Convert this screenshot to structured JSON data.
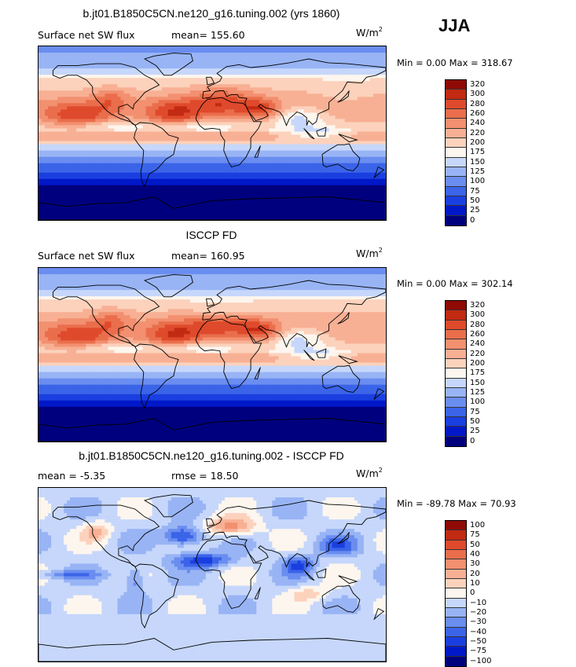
{
  "season": "JJA",
  "colors_abs": [
    "#00007f",
    "#0018c8",
    "#1a3fe0",
    "#3b64e8",
    "#6a8df0",
    "#98b4f5",
    "#c6d7fb",
    "#fdf6ee",
    "#fcd2bc",
    "#f8b094",
    "#f29070",
    "#ea6e4c",
    "#df4a2c",
    "#c22a12",
    "#8f0a04"
  ],
  "colors_diff": [
    "#00007f",
    "#0018c8",
    "#1a3fe0",
    "#3b64e8",
    "#6a8df0",
    "#98b4f5",
    "#c6d7fb",
    "#fdf6ee",
    "#fcd2bc",
    "#f8b094",
    "#f29070",
    "#ea6e4c",
    "#df4a2c",
    "#c22a12",
    "#8f0a04"
  ],
  "panels": [
    {
      "title": "b.jt01.B1850C5CN.ne120_g16.tuning.002 (yrs 1860)",
      "left_label": "Surface net SW flux",
      "right_label": "mean= 155.60",
      "units": "W/m",
      "units_exp": "2",
      "minmax": "Min =    0.00 Max = 318.67",
      "ticks": [
        "320",
        "300",
        "280",
        "260",
        "240",
        "220",
        "200",
        "175",
        "150",
        "125",
        "100",
        "75",
        "50",
        "25",
        "0"
      ],
      "kind": "model"
    },
    {
      "title": "ISCCP FD",
      "left_label": "Surface net SW flux",
      "right_label": "mean= 160.95",
      "units": "W/m",
      "units_exp": "2",
      "minmax": "Min =    0.00 Max = 302.14",
      "ticks": [
        "320",
        "300",
        "280",
        "260",
        "240",
        "220",
        "200",
        "175",
        "150",
        "125",
        "100",
        "75",
        "50",
        "25",
        "0"
      ],
      "kind": "obs"
    },
    {
      "title": "b.jt01.B1850C5CN.ne120_g16.tuning.002 - ISCCP FD",
      "left_label": "mean =  -5.35",
      "right_label": "rmse =  18.50",
      "units": "W/m",
      "units_exp": "2",
      "minmax": "Min = -89.78 Max =  70.93",
      "ticks": [
        "100",
        "75",
        "50",
        "40",
        "30",
        "20",
        "10",
        "0",
        "−10",
        "−20",
        "−30",
        "−40",
        "−50",
        "−75",
        "−100"
      ],
      "kind": "diff"
    }
  ]
}
